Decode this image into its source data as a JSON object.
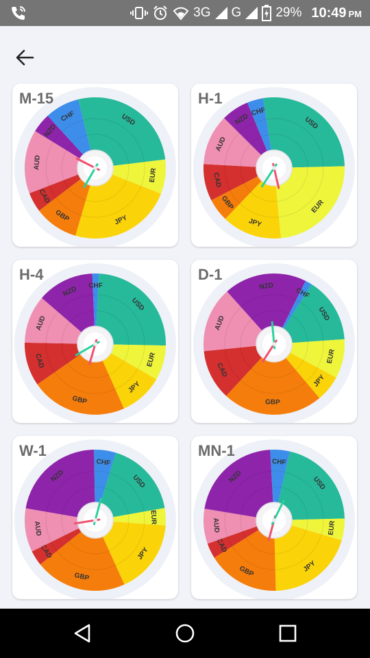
{
  "status_bar": {
    "network": "3G",
    "network2": "G",
    "battery": "29%",
    "time": "10:49",
    "ampm": "PM",
    "icons": [
      "phone-call-icon",
      "vibrate-icon",
      "alarm-icon",
      "wifi-icon",
      "signal-icon",
      "battery-charging-icon"
    ]
  },
  "header": {
    "back_icon": "arrow-left-icon"
  },
  "colors": {
    "USD": "#26b99a",
    "EUR": "#eef53b",
    "JPY": "#fbd309",
    "GBP": "#f57d0b",
    "CAD": "#d3302f",
    "AUD": "#ef8fb1",
    "NZD": "#8e24aa",
    "CHF": "#3d8eea",
    "hand_green": "#2bd19a",
    "hand_red": "#f0506e"
  },
  "cards": [
    {
      "title": "M-15",
      "slices": [
        {
          "label": "USD",
          "percent": 24.0
        },
        {
          "label": "EUR",
          "percent": 7.0
        },
        {
          "label": "JPY",
          "percent": 21.0
        },
        {
          "label": "GBP",
          "percent": 9.0
        },
        {
          "label": "CAD",
          "percent": 4.0
        },
        {
          "label": "AUD",
          "percent": 13.0
        },
        {
          "label": "NZD",
          "percent": 4.0
        },
        {
          "label": "CHF",
          "percent": 7.0
        }
      ],
      "start_deg": -14,
      "hand_green_deg": 210,
      "hand_red_deg": 297
    },
    {
      "title": "H-1",
      "slices": [
        {
          "label": "USD",
          "percent": 25.7
        },
        {
          "label": "EUR",
          "percent": 22.6
        },
        {
          "label": "JPY",
          "percent": 13.0
        },
        {
          "label": "GBP",
          "percent": 5.0
        },
        {
          "label": "CAD",
          "percent": 8.0
        },
        {
          "label": "AUD",
          "percent": 11.0
        },
        {
          "label": "NZD",
          "percent": 6.0
        },
        {
          "label": "CHF",
          "percent": 3.5
        }
      ],
      "start_deg": -9,
      "hand_green_deg": 213,
      "hand_red_deg": 167
    },
    {
      "title": "H-4",
      "slices": [
        {
          "label": "USD",
          "percent": 24.5
        },
        {
          "label": "EUR",
          "percent": 8.0
        },
        {
          "label": "JPY",
          "percent": 10.0
        },
        {
          "label": "GBP",
          "percent": 22.0
        },
        {
          "label": "CAD",
          "percent": 10.0
        },
        {
          "label": "AUD",
          "percent": 11.0
        },
        {
          "label": "NZD",
          "percent": 13.0
        },
        {
          "label": "CHF",
          "percent": 1.5
        }
      ],
      "start_deg": 3,
      "hand_green_deg": 240,
      "hand_red_deg": 196
    },
    {
      "title": "D-1",
      "slices": [
        {
          "label": "USD",
          "percent": 15.0
        },
        {
          "label": "EUR",
          "percent": 9.0
        },
        {
          "label": "JPY",
          "percent": 6.0
        },
        {
          "label": "GBP",
          "percent": 23.0
        },
        {
          "label": "CAD",
          "percent": 11.5
        },
        {
          "label": "AUD",
          "percent": 15.0
        },
        {
          "label": "NZD",
          "percent": 19.0
        },
        {
          "label": "CHF",
          "percent": 1.5
        }
      ],
      "start_deg": 32,
      "hand_green_deg": 355,
      "hand_red_deg": 213
    },
    {
      "title": "W-1",
      "slices": [
        {
          "label": "USD",
          "percent": 17.5
        },
        {
          "label": "EUR",
          "percent": 4.0
        },
        {
          "label": "JPY",
          "percent": 17.0
        },
        {
          "label": "GBP",
          "percent": 21.0
        },
        {
          "label": "CAD",
          "percent": 3.5
        },
        {
          "label": "AUD",
          "percent": 10.0
        },
        {
          "label": "NZD",
          "percent": 22.0
        },
        {
          "label": "CHF",
          "percent": 5.0
        }
      ],
      "start_deg": 17,
      "hand_green_deg": 15,
      "hand_red_deg": 261
    },
    {
      "title": "MN-1",
      "slices": [
        {
          "label": "USD",
          "percent": 21.0
        },
        {
          "label": "EUR",
          "percent": 5.0
        },
        {
          "label": "JPY",
          "percent": 20.0
        },
        {
          "label": "GBP",
          "percent": 16.5
        },
        {
          "label": "CAD",
          "percent": 3.5
        },
        {
          "label": "AUD",
          "percent": 8.0
        },
        {
          "label": "NZD",
          "percent": 21.5
        },
        {
          "label": "CHF",
          "percent": 4.5
        }
      ],
      "start_deg": 13,
      "hand_green_deg": 26,
      "hand_red_deg": 195
    }
  ],
  "nav_bar": {
    "icons": [
      "back-triangle-icon",
      "home-circle-icon",
      "recents-square-icon"
    ]
  }
}
